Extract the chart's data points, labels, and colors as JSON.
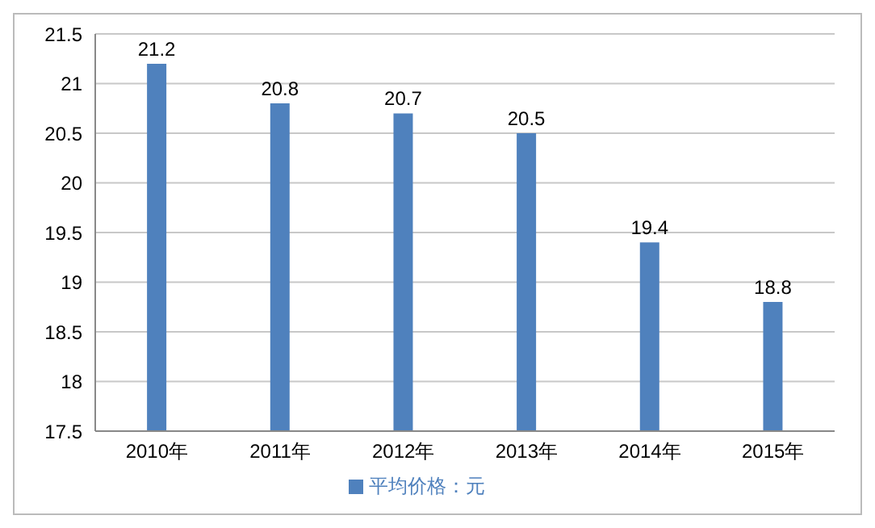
{
  "chart_data": {
    "type": "bar",
    "categories": [
      "2010年",
      "2011年",
      "2012年",
      "2013年",
      "2014年",
      "2015年"
    ],
    "series": [
      {
        "name": "平均价格：元",
        "color": "#4f81bd",
        "values": [
          21.2,
          20.8,
          20.7,
          20.5,
          19.4,
          18.8
        ]
      }
    ],
    "ylim": [
      17.5,
      21.5
    ],
    "yticks": [
      17.5,
      18,
      18.5,
      19,
      19.5,
      20,
      20.5,
      21,
      21.5
    ],
    "grid": "y",
    "legend": "bottom",
    "data_labels": true
  }
}
